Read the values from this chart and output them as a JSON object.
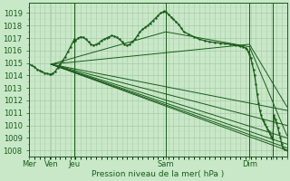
{
  "bg_color": "#c8e8c8",
  "grid_color_major": "#a8c8a8",
  "grid_color_minor": "#b8d8b8",
  "line_color": "#1a5c1a",
  "xlabel_text": "Pression niveau de la mer( hPa )",
  "ylim": [
    1007.5,
    1019.8
  ],
  "yticks": [
    1008,
    1009,
    1010,
    1011,
    1012,
    1013,
    1014,
    1015,
    1016,
    1017,
    1018,
    1019
  ],
  "day_vlines_x": [
    0.0,
    0.175,
    0.53,
    0.855,
    0.945
  ],
  "xtick_positions": [
    0.0,
    0.085,
    0.175,
    0.53,
    0.855,
    0.945,
    1.0
  ],
  "xtick_labels": [
    "Mer",
    "Ven",
    "Jeu",
    "Sam",
    "Dim",
    "",
    ""
  ],
  "fan_lines": [
    [
      [
        0.085,
        1014.9
      ],
      [
        1.0,
        1011.2
      ]
    ],
    [
      [
        0.085,
        1014.9
      ],
      [
        1.0,
        1010.0
      ]
    ],
    [
      [
        0.085,
        1014.9
      ],
      [
        1.0,
        1009.0
      ]
    ],
    [
      [
        0.085,
        1014.9
      ],
      [
        1.0,
        1008.5
      ]
    ],
    [
      [
        0.085,
        1014.9
      ],
      [
        1.0,
        1008.2
      ]
    ],
    [
      [
        0.085,
        1014.9
      ],
      [
        1.0,
        1008.0
      ]
    ],
    [
      [
        0.085,
        1014.9
      ],
      [
        0.855,
        1016.5
      ],
      [
        1.0,
        1011.5
      ]
    ],
    [
      [
        0.085,
        1014.9
      ],
      [
        0.53,
        1017.5
      ],
      [
        0.855,
        1016.3
      ],
      [
        1.0,
        1009.2
      ]
    ]
  ],
  "detailed_line": [
    [
      0.0,
      1014.9
    ],
    [
      0.01,
      1014.8
    ],
    [
      0.02,
      1014.7
    ],
    [
      0.03,
      1014.5
    ],
    [
      0.04,
      1014.4
    ],
    [
      0.05,
      1014.3
    ],
    [
      0.06,
      1014.2
    ],
    [
      0.07,
      1014.15
    ],
    [
      0.08,
      1014.1
    ],
    [
      0.085,
      1014.1
    ],
    [
      0.09,
      1014.15
    ],
    [
      0.1,
      1014.3
    ],
    [
      0.11,
      1014.6
    ],
    [
      0.12,
      1014.9
    ],
    [
      0.13,
      1015.2
    ],
    [
      0.14,
      1015.5
    ],
    [
      0.15,
      1015.9
    ],
    [
      0.16,
      1016.3
    ],
    [
      0.17,
      1016.7
    ],
    [
      0.175,
      1016.9
    ],
    [
      0.18,
      1016.8
    ],
    [
      0.19,
      1017.0
    ],
    [
      0.2,
      1017.1
    ],
    [
      0.21,
      1017.05
    ],
    [
      0.22,
      1016.9
    ],
    [
      0.23,
      1016.7
    ],
    [
      0.24,
      1016.5
    ],
    [
      0.25,
      1016.4
    ],
    [
      0.26,
      1016.5
    ],
    [
      0.27,
      1016.6
    ],
    [
      0.28,
      1016.8
    ],
    [
      0.29,
      1016.9
    ],
    [
      0.3,
      1017.0
    ],
    [
      0.31,
      1017.1
    ],
    [
      0.32,
      1017.2
    ],
    [
      0.33,
      1017.15
    ],
    [
      0.34,
      1017.05
    ],
    [
      0.35,
      1016.9
    ],
    [
      0.36,
      1016.7
    ],
    [
      0.37,
      1016.5
    ],
    [
      0.38,
      1016.4
    ],
    [
      0.39,
      1016.5
    ],
    [
      0.4,
      1016.7
    ],
    [
      0.41,
      1016.9
    ],
    [
      0.42,
      1017.2
    ],
    [
      0.43,
      1017.5
    ],
    [
      0.44,
      1017.7
    ],
    [
      0.45,
      1017.85
    ],
    [
      0.46,
      1018.0
    ],
    [
      0.47,
      1018.2
    ],
    [
      0.48,
      1018.4
    ],
    [
      0.49,
      1018.6
    ],
    [
      0.5,
      1018.8
    ],
    [
      0.51,
      1019.0
    ],
    [
      0.52,
      1019.1
    ],
    [
      0.525,
      1019.15
    ],
    [
      0.53,
      1019.1
    ],
    [
      0.54,
      1018.9
    ],
    [
      0.55,
      1018.7
    ],
    [
      0.56,
      1018.5
    ],
    [
      0.57,
      1018.3
    ],
    [
      0.58,
      1018.1
    ],
    [
      0.59,
      1017.8
    ],
    [
      0.6,
      1017.5
    ],
    [
      0.62,
      1017.3
    ],
    [
      0.64,
      1017.1
    ],
    [
      0.66,
      1016.9
    ],
    [
      0.68,
      1016.8
    ],
    [
      0.7,
      1016.7
    ],
    [
      0.72,
      1016.65
    ],
    [
      0.74,
      1016.6
    ],
    [
      0.76,
      1016.55
    ],
    [
      0.78,
      1016.5
    ],
    [
      0.79,
      1016.5
    ],
    [
      0.8,
      1016.45
    ],
    [
      0.81,
      1016.4
    ],
    [
      0.82,
      1016.35
    ],
    [
      0.83,
      1016.3
    ],
    [
      0.84,
      1016.2
    ],
    [
      0.845,
      1016.1
    ],
    [
      0.85,
      1015.9
    ],
    [
      0.855,
      1015.7
    ],
    [
      0.86,
      1015.4
    ],
    [
      0.865,
      1015.0
    ],
    [
      0.87,
      1014.5
    ],
    [
      0.875,
      1014.0
    ],
    [
      0.88,
      1013.3
    ],
    [
      0.885,
      1012.5
    ],
    [
      0.89,
      1011.8
    ],
    [
      0.895,
      1011.2
    ],
    [
      0.9,
      1010.8
    ],
    [
      0.905,
      1010.5
    ],
    [
      0.91,
      1010.3
    ],
    [
      0.915,
      1010.1
    ],
    [
      0.92,
      1009.9
    ],
    [
      0.925,
      1009.7
    ],
    [
      0.93,
      1009.5
    ],
    [
      0.935,
      1009.3
    ],
    [
      0.94,
      1009.1
    ],
    [
      0.945,
      1008.9
    ],
    [
      0.95,
      1010.8
    ],
    [
      0.955,
      1010.5
    ],
    [
      0.96,
      1010.2
    ],
    [
      0.965,
      1009.8
    ],
    [
      0.97,
      1009.4
    ],
    [
      0.975,
      1009.0
    ],
    [
      0.98,
      1008.5
    ],
    [
      0.985,
      1008.2
    ],
    [
      0.99,
      1008.05
    ],
    [
      1.0,
      1008.0
    ]
  ]
}
